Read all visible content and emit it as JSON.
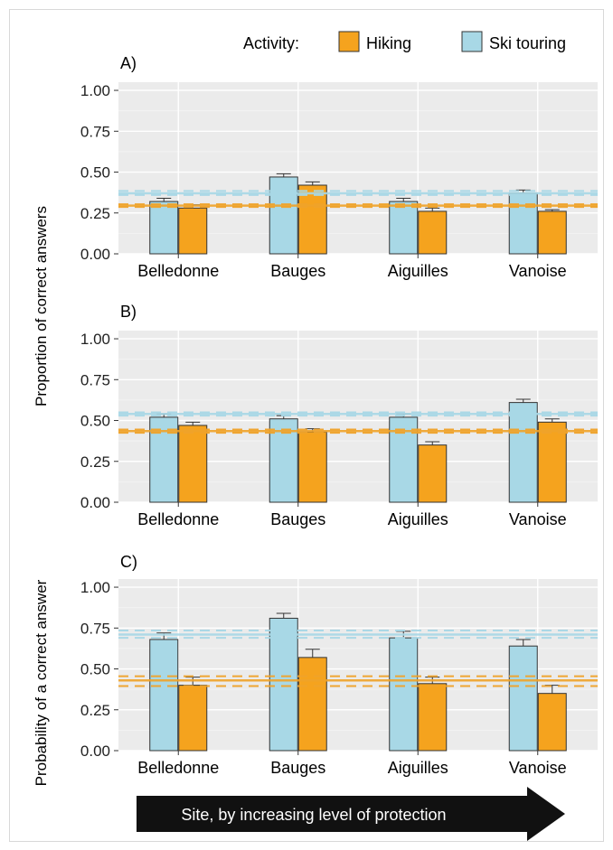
{
  "legend": {
    "title": "Activity:",
    "items": [
      {
        "name": "Hiking",
        "color": "#F5A31E"
      },
      {
        "name": "Ski touring",
        "color": "#A8D8E6"
      }
    ]
  },
  "ylabel_top": "Proportion of correct answers",
  "ylabel_bottom": "Probability of a correct answer",
  "arrow_label": "Site, by increasing level of protection",
  "chart_data": [
    {
      "type": "bar",
      "panel_label": "A)",
      "categories": [
        "Belledonne",
        "Bauges",
        "Aiguilles",
        "Vanoise"
      ],
      "ylim": [
        0,
        1.05
      ],
      "yticks": [
        "0.00",
        "0.25",
        "0.50",
        "0.75",
        "1.00"
      ],
      "series": [
        {
          "name": "Ski touring",
          "values": [
            0.32,
            0.47,
            0.32,
            0.37
          ],
          "err_upper": [
            0.34,
            0.49,
            0.34,
            0.39
          ],
          "ref_line": 0.37,
          "ref_ci": [
            0.36,
            0.385
          ]
        },
        {
          "name": "Hiking",
          "values": [
            0.28,
            0.42,
            0.26,
            0.26
          ],
          "err_upper": [
            0.3,
            0.44,
            0.28,
            0.27
          ],
          "ref_line": 0.295,
          "ref_ci": [
            0.287,
            0.303
          ]
        }
      ],
      "grid": true
    },
    {
      "type": "bar",
      "panel_label": "B)",
      "categories": [
        "Belledonne",
        "Bauges",
        "Aiguilles",
        "Vanoise"
      ],
      "ylim": [
        0,
        1.05
      ],
      "yticks": [
        "0.00",
        "0.25",
        "0.50",
        "0.75",
        "1.00"
      ],
      "series": [
        {
          "name": "Ski touring",
          "values": [
            0.52,
            0.51,
            0.52,
            0.61
          ],
          "err_upper": [
            0.54,
            0.53,
            0.54,
            0.63
          ],
          "ref_line": 0.54,
          "ref_ci": [
            0.53,
            0.55
          ]
        },
        {
          "name": "Hiking",
          "values": [
            0.47,
            0.43,
            0.35,
            0.49
          ],
          "err_upper": [
            0.49,
            0.45,
            0.37,
            0.51
          ],
          "ref_line": 0.435,
          "ref_ci": [
            0.425,
            0.445
          ]
        }
      ],
      "grid": true
    },
    {
      "type": "bar",
      "panel_label": "C)",
      "categories": [
        "Belledonne",
        "Bauges",
        "Aiguilles",
        "Vanoise"
      ],
      "ylim": [
        0,
        1.05
      ],
      "yticks": [
        "0.00",
        "0.25",
        "0.50",
        "0.75",
        "1.00"
      ],
      "series": [
        {
          "name": "Ski touring",
          "values": [
            0.68,
            0.81,
            0.69,
            0.64
          ],
          "err_upper": [
            0.72,
            0.84,
            0.73,
            0.68
          ],
          "ref_line": 0.71,
          "ref_ci": [
            0.69,
            0.735
          ]
        },
        {
          "name": "Hiking",
          "values": [
            0.4,
            0.57,
            0.41,
            0.35
          ],
          "err_upper": [
            0.45,
            0.62,
            0.45,
            0.4
          ],
          "ref_line": 0.43,
          "ref_ci": [
            0.395,
            0.455
          ]
        }
      ],
      "grid": true
    }
  ]
}
